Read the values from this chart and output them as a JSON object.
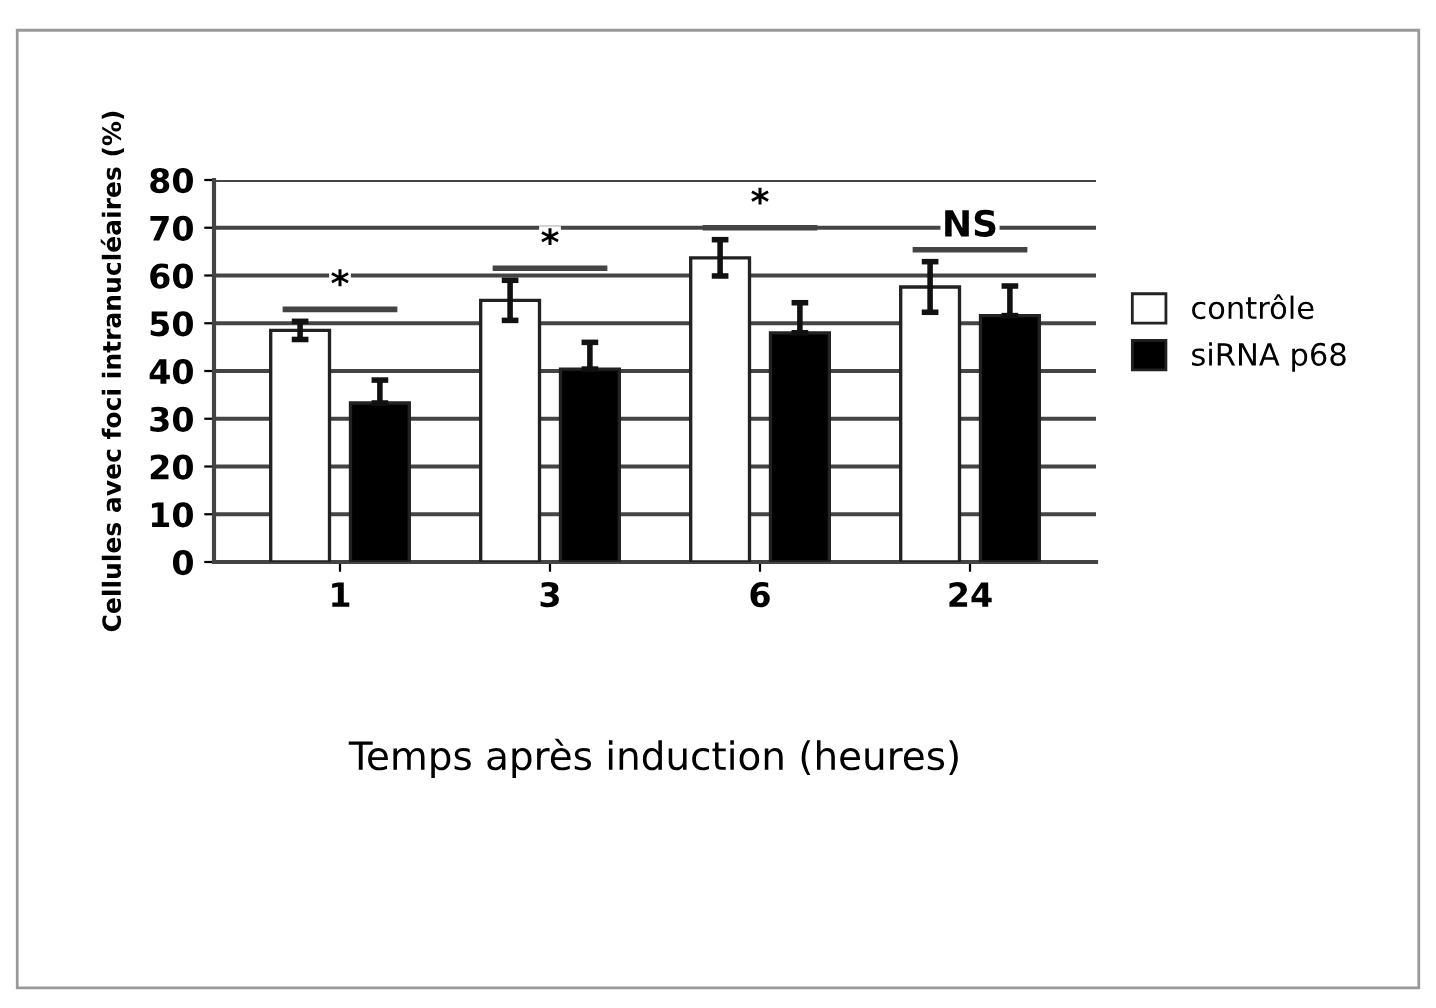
{
  "chart_data": {
    "type": "bar",
    "categories": [
      "1",
      "3",
      "6",
      "24"
    ],
    "series": [
      {
        "name": "contrôle",
        "color": "#ffffff",
        "values": [
          48.5,
          54.8,
          63.7,
          57.6
        ],
        "errors": [
          1.9,
          4.2,
          3.8,
          5.3
        ]
      },
      {
        "name": "siRNA p68",
        "color": "#000000",
        "values": [
          33.3,
          40.4,
          48.0,
          51.6
        ],
        "errors": [
          [
            33.3,
            38.1
          ],
          [
            40.4,
            46.0
          ],
          [
            48.0,
            54.3
          ],
          [
            51.6,
            57.8
          ]
        ]
      }
    ],
    "xlabel": "Temps après induction (heures)",
    "ylabel": "Cellules avec foci intranucléaires (%)",
    "ylim": [
      0,
      80
    ],
    "yticks": [
      0,
      10,
      20,
      30,
      40,
      50,
      60,
      70,
      80
    ],
    "grid": "y",
    "legend": "right",
    "annotations": [
      "*",
      "*",
      "*",
      "NS"
    ]
  }
}
